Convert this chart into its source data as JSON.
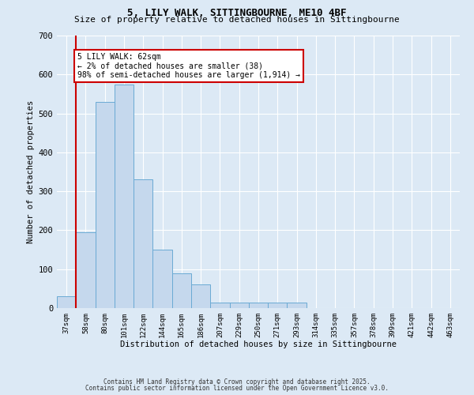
{
  "title1": "5, LILY WALK, SITTINGBOURNE, ME10 4BF",
  "title2": "Size of property relative to detached houses in Sittingbourne",
  "xlabel": "Distribution of detached houses by size in Sittingbourne",
  "ylabel": "Number of detached properties",
  "bar_color": "#c5d8ed",
  "bar_edge_color": "#6aaad4",
  "categories": [
    "37sqm",
    "58sqm",
    "80sqm",
    "101sqm",
    "122sqm",
    "144sqm",
    "165sqm",
    "186sqm",
    "207sqm",
    "229sqm",
    "250sqm",
    "271sqm",
    "293sqm",
    "314sqm",
    "335sqm",
    "357sqm",
    "378sqm",
    "399sqm",
    "421sqm",
    "442sqm",
    "463sqm"
  ],
  "values": [
    30,
    195,
    530,
    575,
    330,
    150,
    90,
    60,
    15,
    15,
    15,
    15,
    15,
    0,
    0,
    0,
    0,
    0,
    0,
    0,
    0
  ],
  "ylim": [
    0,
    700
  ],
  "yticks": [
    0,
    100,
    200,
    300,
    400,
    500,
    600,
    700
  ],
  "vline_color": "#cc0000",
  "annotation_text": "5 LILY WALK: 62sqm\n← 2% of detached houses are smaller (38)\n98% of semi-detached houses are larger (1,914) →",
  "annotation_box_color": "#ffffff",
  "annotation_box_edge": "#cc0000",
  "footer1": "Contains HM Land Registry data © Crown copyright and database right 2025.",
  "footer2": "Contains public sector information licensed under the Open Government Licence v3.0.",
  "background_color": "#dce9f5",
  "grid_color": "#ffffff"
}
